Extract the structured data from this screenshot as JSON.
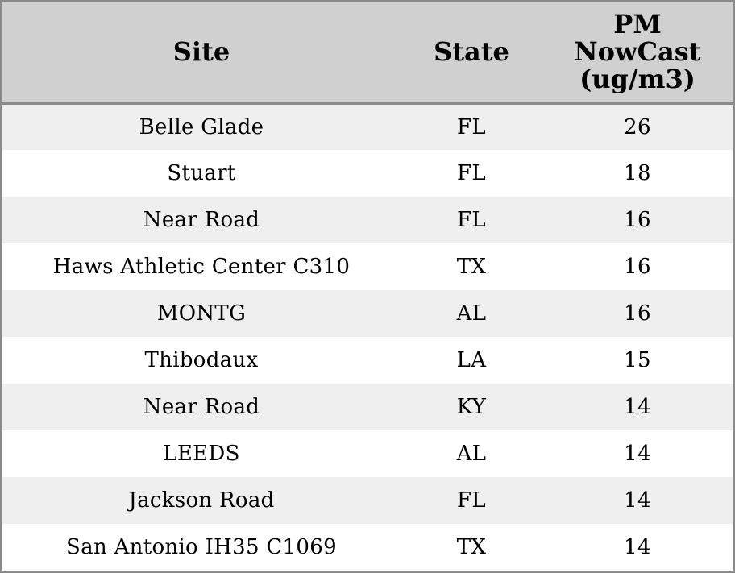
{
  "chart_data": {
    "type": "table",
    "columns": [
      "Site",
      "State",
      "PM NowCast (ug/m3)"
    ],
    "header_lines": {
      "site": "Site",
      "state": "State",
      "pm": [
        "PM",
        "NowCast",
        "(ug/m3)"
      ]
    },
    "rows": [
      {
        "site": "Belle Glade",
        "state": "FL",
        "pm": "26"
      },
      {
        "site": "Stuart",
        "state": "FL",
        "pm": "18"
      },
      {
        "site": "Near Road",
        "state": "FL",
        "pm": "16"
      },
      {
        "site": "Haws Athletic Center C310",
        "state": "TX",
        "pm": "16"
      },
      {
        "site": "MONTG",
        "state": "AL",
        "pm": "16"
      },
      {
        "site": "Thibodaux",
        "state": "LA",
        "pm": "15"
      },
      {
        "site": "Near Road",
        "state": "KY",
        "pm": "14"
      },
      {
        "site": "LEEDS",
        "state": "AL",
        "pm": "14"
      },
      {
        "site": "Jackson Road",
        "state": "FL",
        "pm": "14"
      },
      {
        "site": "San Antonio IH35 C1069",
        "state": "TX",
        "pm": "14"
      }
    ],
    "colors": {
      "header_bg": "#d0d0d0",
      "stripe_bg": "#efefef",
      "row_bg": "#ffffff",
      "border": "#8a8a8a"
    }
  }
}
